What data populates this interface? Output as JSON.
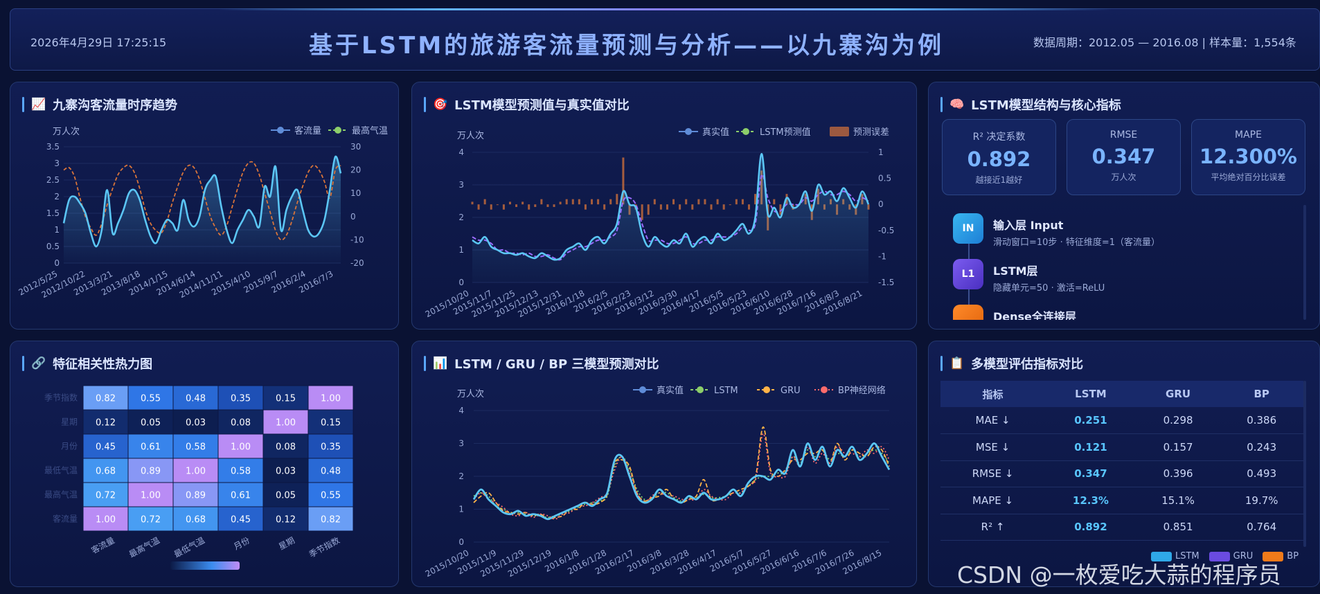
{
  "header": {
    "datetime": "2026年4月29日 17:25:15",
    "title": "基于LSTM的旅游客流量预测与分析——以九寨沟为例",
    "info": "数据周期：2012.05 — 2016.08  |  样本量：1,554条"
  },
  "colors": {
    "accent": "#5aa7ff",
    "flow": "#5bc6f5",
    "temp": "#d8743a",
    "lstm": "#9b6bff",
    "gru": "#ffb347",
    "bp": "#ff6b6b",
    "actual": "#5bc6f5"
  },
  "panels": {
    "trend": {
      "icon": "chart-increasing-icon",
      "title": "九寨沟客流量时序趋势"
    },
    "pred": {
      "icon": "target-icon",
      "title": "LSTM模型预测值与真实值对比"
    },
    "model": {
      "icon": "brain-icon",
      "title": "LSTM模型结构与核心指标"
    },
    "heat": {
      "icon": "link-icon",
      "title": "特征相关性热力图"
    },
    "compare": {
      "icon": "bar-chart-icon",
      "title": "LSTM / GRU / BP 三模型预测对比"
    },
    "metrics": {
      "icon": "clipboard-icon",
      "title": "多模型评估指标对比"
    }
  },
  "kpis": [
    {
      "label": "R² 决定系数",
      "value": "0.892",
      "sub": "越接近1越好"
    },
    {
      "label": "RMSE",
      "value": "0.347",
      "sub": "万人次"
    },
    {
      "label": "MAPE",
      "value": "12.300%",
      "sub": "平均绝对百分比误差"
    }
  ],
  "layers": [
    {
      "badge": "IN",
      "name": "输入层 Input",
      "desc": "滑动窗口=10步 · 特征维度=1（客流量）",
      "color": "#2fa8e8"
    },
    {
      "badge": "L1",
      "name": "LSTM层",
      "desc": "隐藏单元=50 · 激活=ReLU",
      "color": "#6a4be0"
    },
    {
      "badge": "",
      "name": "Dense全连接层",
      "desc": "",
      "color": "#f07a1a"
    }
  ],
  "metrics_table": {
    "headers": [
      "指标",
      "LSTM",
      "GRU",
      "BP"
    ],
    "rows": [
      [
        "MAE ↓",
        "0.251",
        "0.298",
        "0.386"
      ],
      [
        "MSE ↓",
        "0.121",
        "0.157",
        "0.243"
      ],
      [
        "RMSE ↓",
        "0.347",
        "0.396",
        "0.493"
      ],
      [
        "MAPE ↓",
        "12.3%",
        "15.1%",
        "19.7%"
      ],
      [
        "R² ↑",
        "0.892",
        "0.851",
        "0.764"
      ]
    ],
    "legend": [
      "LSTM",
      "GRU",
      "BP"
    ]
  },
  "watermark": "CSDN @一枚爱吃大蒜的程序员",
  "chart_data": [
    {
      "id": "trend",
      "type": "line",
      "ylabel": "万人次",
      "legend": [
        "客流量",
        "最高气温"
      ],
      "x_ticks": [
        "2012/5/25",
        "2012/10/22",
        "2013/3/21",
        "2013/8/18",
        "2014/1/15",
        "2014/6/14",
        "2014/11/11",
        "2015/4/10",
        "2015/9/7",
        "2016/2/4",
        "2016/7/3"
      ],
      "ylim": [
        0,
        3.5
      ],
      "y_ticks": [
        "0",
        "0.5",
        "1",
        "1.5",
        "2",
        "2.5",
        "3",
        "3.5"
      ],
      "y2lim": [
        -20,
        30
      ],
      "y2_ticks": [
        "-20",
        "-10",
        "0",
        "10",
        "20",
        "30"
      ],
      "series": [
        {
          "name": "客流量",
          "values": [
            1.2,
            1.9,
            2.0,
            1.8,
            1.5,
            0.9,
            0.5,
            1.0,
            2.2,
            0.9,
            1.2,
            1.6,
            2.1,
            2.2,
            1.9,
            1.3,
            0.8,
            0.6,
            1.0,
            1.3,
            1.2,
            1.0,
            1.9,
            1.3,
            1.1,
            1.4,
            2.2,
            2.5,
            2.6,
            1.7,
            1.0,
            0.6,
            1.0,
            1.3,
            1.6,
            1.4,
            1.1,
            2.3,
            2.0,
            2.9,
            1.0,
            1.6,
            2.0,
            2.2,
            1.6,
            1.0,
            0.8,
            0.9,
            1.3,
            2.2,
            3.2,
            2.7
          ]
        },
        {
          "name": "最高气温",
          "values": [
            20,
            21,
            17,
            8,
            0,
            -5,
            -8,
            -3,
            5,
            12,
            18,
            21,
            22,
            19,
            12,
            3,
            -3,
            -6,
            -7,
            -2,
            6,
            13,
            19,
            22,
            21,
            16,
            8,
            0,
            -5,
            -8,
            -4,
            4,
            12,
            19,
            23,
            23,
            18,
            10,
            2,
            -6,
            -10,
            -8,
            -2,
            6,
            13,
            19,
            22,
            20,
            15,
            8,
            20,
            22
          ]
        }
      ]
    },
    {
      "id": "pred",
      "type": "line",
      "ylabel": "万人次",
      "legend": [
        "真实值",
        "LSTM预测值",
        "预测误差"
      ],
      "x_ticks": [
        "2015/10/20",
        "2015/11/7",
        "2015/11/25",
        "2015/12/13",
        "2015/12/31",
        "2016/1/18",
        "2016/2/5",
        "2016/2/23",
        "2016/3/12",
        "2016/3/30",
        "2016/4/17",
        "2016/5/5",
        "2016/5/23",
        "2016/6/10",
        "2016/6/28",
        "2016/7/16",
        "2016/8/3",
        "2016/8/21"
      ],
      "ylim": [
        0,
        4
      ],
      "y_ticks": [
        "0",
        "1",
        "2",
        "3",
        "4"
      ],
      "y2lim": [
        -1.5,
        1
      ],
      "y2_ticks": [
        "-1.5",
        "-1",
        "-0.5",
        "0",
        "0.5",
        "1"
      ],
      "series": [
        {
          "name": "真实值",
          "values": [
            1.3,
            1.2,
            1.4,
            1.1,
            1.0,
            0.9,
            0.9,
            0.85,
            0.9,
            0.8,
            0.75,
            0.9,
            0.8,
            0.7,
            0.75,
            1.0,
            1.1,
            1.2,
            1.0,
            1.3,
            1.4,
            1.2,
            1.5,
            1.8,
            2.8,
            2.4,
            2.3,
            1.5,
            1.1,
            1.4,
            1.2,
            1.1,
            1.3,
            1.2,
            1.5,
            1.1,
            1.3,
            1.4,
            1.2,
            1.5,
            1.3,
            1.4,
            1.6,
            1.8,
            1.5,
            2.0,
            3.95,
            2.1,
            2.3,
            2.0,
            2.6,
            2.3,
            2.4,
            2.8,
            2.2,
            3.0,
            2.7,
            2.8,
            2.5,
            2.9,
            2.6,
            2.3,
            2.8,
            2.4
          ]
        },
        {
          "name": "LSTM预测值",
          "values": [
            1.4,
            1.3,
            1.3,
            1.2,
            1.0,
            1.0,
            0.9,
            0.9,
            0.85,
            0.9,
            0.8,
            0.8,
            0.85,
            0.75,
            0.7,
            0.9,
            1.0,
            1.1,
            1.1,
            1.2,
            1.3,
            1.3,
            1.4,
            1.6,
            2.5,
            2.6,
            2.4,
            1.8,
            1.3,
            1.3,
            1.3,
            1.2,
            1.2,
            1.3,
            1.4,
            1.2,
            1.2,
            1.3,
            1.3,
            1.4,
            1.4,
            1.4,
            1.5,
            1.7,
            1.6,
            1.8,
            3.3,
            2.6,
            2.2,
            2.2,
            2.4,
            2.4,
            2.4,
            2.6,
            2.5,
            2.7,
            2.8,
            2.7,
            2.7,
            2.8,
            2.7,
            2.5,
            2.6,
            2.5
          ]
        },
        {
          "name": "预测误差",
          "values": [
            0.05,
            -0.1,
            0.1,
            -0.1,
            0.0,
            -0.1,
            0.05,
            -0.05,
            0.05,
            -0.1,
            -0.05,
            0.1,
            -0.05,
            -0.05,
            0.05,
            0.1,
            0.1,
            0.1,
            -0.1,
            0.1,
            0.1,
            -0.1,
            0.1,
            0.2,
            0.9,
            -0.2,
            -0.1,
            -0.3,
            -0.2,
            0.1,
            -0.1,
            -0.1,
            0.1,
            -0.1,
            0.1,
            -0.1,
            0.1,
            0.1,
            -0.1,
            0.1,
            -0.1,
            0.0,
            0.1,
            0.1,
            -0.1,
            0.2,
            0.65,
            -0.5,
            0.1,
            -0.2,
            0.2,
            -0.1,
            0.0,
            0.2,
            -0.3,
            0.3,
            -0.1,
            0.1,
            -0.2,
            0.1,
            -0.1,
            -0.2,
            0.2,
            -0.1
          ]
        }
      ]
    },
    {
      "id": "heat",
      "type": "heatmap",
      "rows": [
        "季节指数",
        "星期",
        "月份",
        "最低气温",
        "最高气温",
        "客流量"
      ],
      "cols": [
        "客流量",
        "最高气温",
        "最低气温",
        "月份",
        "星期",
        "季节指数"
      ],
      "values": [
        [
          0.82,
          0.55,
          0.48,
          0.35,
          0.15,
          1.0
        ],
        [
          0.12,
          0.05,
          0.03,
          0.08,
          1.0,
          0.15
        ],
        [
          0.45,
          0.61,
          0.58,
          1.0,
          0.08,
          0.35
        ],
        [
          0.68,
          0.89,
          1.0,
          0.58,
          0.03,
          0.48
        ],
        [
          0.72,
          1.0,
          0.89,
          0.61,
          0.05,
          0.55
        ],
        [
          1.0,
          0.72,
          0.68,
          0.45,
          0.12,
          0.82
        ]
      ]
    },
    {
      "id": "compare",
      "type": "line",
      "ylabel": "万人次",
      "legend": [
        "真实值",
        "LSTM",
        "GRU",
        "BP神经网络"
      ],
      "x_ticks": [
        "2015/10/20",
        "2015/11/9",
        "2015/11/29",
        "2015/12/19",
        "2016/1/8",
        "2016/1/28",
        "2016/2/17",
        "2016/3/8",
        "2016/3/28",
        "2016/4/17",
        "2016/5/7",
        "2016/5/27",
        "2016/6/16",
        "2016/7/6",
        "2016/7/26",
        "2016/8/15"
      ],
      "ylim": [
        0,
        4
      ],
      "y_ticks": [
        "0",
        "1",
        "2",
        "3",
        "4"
      ],
      "series": [
        {
          "name": "真实值",
          "values": [
            1.3,
            1.6,
            1.3,
            1.1,
            0.9,
            0.85,
            0.95,
            0.8,
            0.85,
            0.8,
            0.7,
            0.8,
            0.9,
            1.0,
            1.1,
            1.2,
            1.1,
            1.3,
            1.5,
            2.5,
            2.6,
            2.0,
            1.4,
            1.2,
            1.3,
            1.6,
            1.4,
            1.3,
            1.2,
            1.4,
            1.3,
            1.5,
            1.3,
            1.3,
            1.4,
            1.6,
            1.4,
            1.8,
            2.0,
            2.0,
            1.9,
            2.2,
            2.1,
            2.8,
            2.3,
            3.0,
            2.5,
            2.9,
            2.3,
            2.8,
            2.6,
            2.9,
            2.5,
            2.7,
            3.0,
            2.6,
            2.2
          ]
        },
        {
          "name": "LSTM",
          "values": [
            1.4,
            1.5,
            1.4,
            1.1,
            1.0,
            0.9,
            0.9,
            0.85,
            0.8,
            0.8,
            0.75,
            0.8,
            0.85,
            0.95,
            1.05,
            1.15,
            1.2,
            1.25,
            1.4,
            2.3,
            2.6,
            2.2,
            1.6,
            1.3,
            1.3,
            1.5,
            1.5,
            1.35,
            1.25,
            1.35,
            1.35,
            1.45,
            1.35,
            1.35,
            1.4,
            1.5,
            1.5,
            1.7,
            1.9,
            2.0,
            2.0,
            2.1,
            2.1,
            2.6,
            2.4,
            2.8,
            2.6,
            2.8,
            2.5,
            2.7,
            2.6,
            2.8,
            2.6,
            2.7,
            2.8,
            2.7,
            2.4
          ]
        },
        {
          "name": "GRU",
          "values": [
            1.2,
            1.4,
            1.5,
            1.2,
            0.95,
            0.9,
            0.85,
            0.9,
            0.8,
            0.85,
            0.7,
            0.75,
            0.8,
            1.0,
            1.0,
            1.2,
            1.15,
            1.2,
            1.45,
            2.4,
            2.5,
            2.3,
            1.5,
            1.25,
            1.35,
            1.4,
            1.6,
            1.3,
            1.2,
            1.3,
            1.4,
            1.9,
            1.3,
            1.3,
            1.4,
            1.5,
            1.6,
            1.7,
            2.0,
            3.5,
            2.2,
            2.0,
            2.2,
            2.5,
            2.5,
            2.7,
            2.7,
            2.8,
            2.4,
            3.0,
            2.5,
            2.8,
            2.7,
            2.6,
            2.9,
            2.8,
            2.3
          ]
        },
        {
          "name": "BP神经网络",
          "values": [
            1.3,
            1.5,
            1.3,
            1.2,
            1.05,
            0.85,
            0.8,
            0.9,
            0.75,
            0.85,
            0.8,
            0.7,
            0.85,
            0.9,
            1.1,
            1.1,
            1.2,
            1.35,
            1.5,
            2.2,
            2.6,
            2.1,
            1.5,
            1.2,
            1.4,
            1.5,
            1.4,
            1.4,
            1.3,
            1.3,
            1.3,
            1.6,
            1.4,
            1.3,
            1.3,
            1.5,
            1.5,
            1.8,
            1.9,
            3.3,
            2.1,
            2.0,
            2.0,
            2.6,
            2.3,
            2.9,
            2.4,
            2.7,
            2.4,
            2.9,
            2.7,
            2.7,
            2.6,
            2.8,
            2.7,
            2.9,
            2.5
          ]
        }
      ]
    }
  ]
}
